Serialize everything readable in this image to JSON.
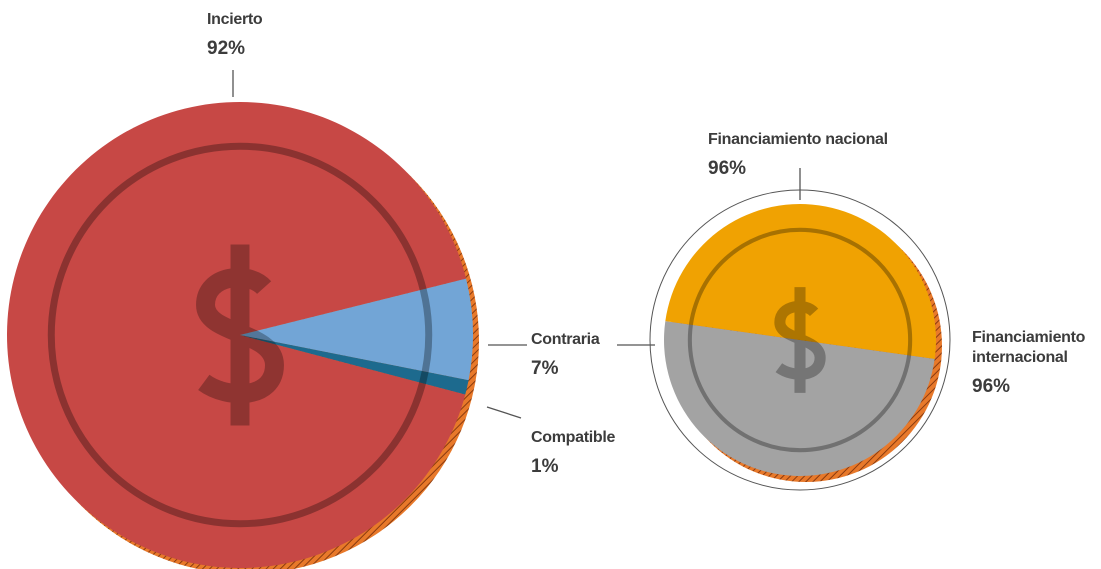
{
  "chart_data": [
    {
      "type": "pie",
      "categories": [
        "Incierto",
        "Contraria",
        "Compatible"
      ],
      "values": [
        92,
        7,
        1
      ],
      "value_labels": [
        "92%",
        "7%",
        "1%"
      ],
      "colors": [
        "#c74845",
        "#72a5d6",
        "#1d6a8e"
      ]
    },
    {
      "type": "pie",
      "categories": [
        "Financiamiento nacional",
        "Financiamiento internacional"
      ],
      "values": [
        96,
        96
      ],
      "value_labels": [
        "96%",
        "96%"
      ],
      "colors": [
        "#a3a3a3",
        "#f0a202"
      ]
    }
  ]
}
